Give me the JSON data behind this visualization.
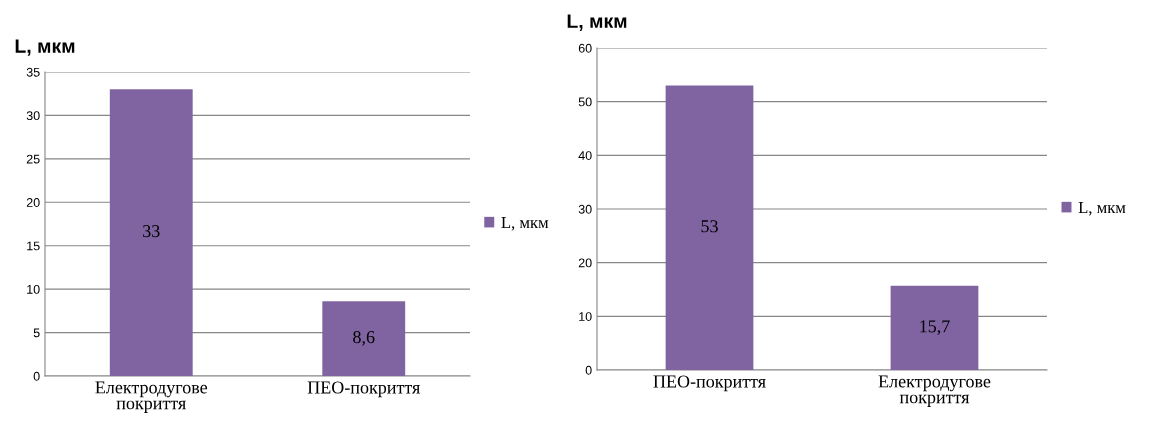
{
  "chart_data": [
    {
      "type": "bar",
      "ylabel": "L, мкм",
      "categories": [
        "Електродугове\nпокриття",
        "ПЕО-покриття"
      ],
      "series": [
        {
          "name": "L, мкм",
          "color": "#8064a2",
          "values": [
            33,
            8.6
          ],
          "value_labels": [
            "33",
            "8,6"
          ]
        }
      ],
      "ylim": [
        0,
        35
      ],
      "yticks": [
        0,
        5,
        10,
        15,
        20,
        25,
        30,
        35
      ],
      "grid": "y",
      "legend": "right"
    },
    {
      "type": "bar",
      "ylabel": "L, мкм",
      "categories": [
        "ПЕО-покриття",
        "Електродугове\nпокриття"
      ],
      "series": [
        {
          "name": "L, мкм",
          "color": "#8064a2",
          "values": [
            53,
            15.7
          ],
          "value_labels": [
            "53",
            "15,7"
          ]
        }
      ],
      "ylim": [
        0,
        60
      ],
      "yticks": [
        0,
        10,
        20,
        30,
        40,
        50,
        60
      ],
      "grid": "y",
      "legend": "right"
    }
  ]
}
